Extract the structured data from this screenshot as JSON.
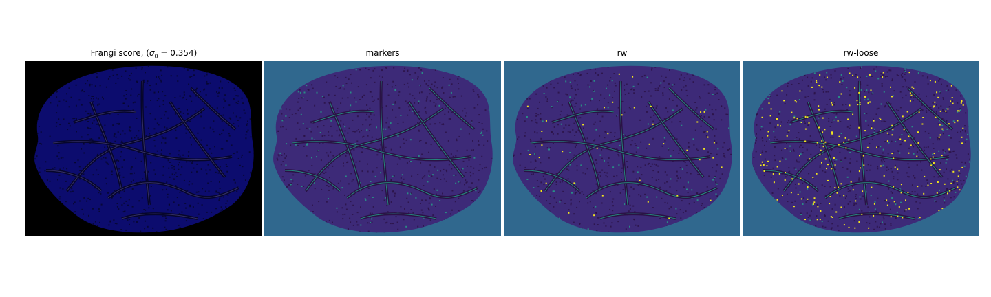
{
  "panels": [
    {
      "id": "p1",
      "title_plain": "Frangi score, (",
      "title_math": "σ",
      "title_sub": "0",
      "title_rest": " = 0.354)",
      "background": "#000000",
      "fill": "#0c0c6e",
      "vessel": "#06062a",
      "accent": "#8a7bd0",
      "speckle_density": 0.0,
      "yellow_density": 0.0
    },
    {
      "id": "p2",
      "title": "markers",
      "background": "#30688e",
      "fill": "#3d2a78",
      "vessel": "#2a1245",
      "accent": "#26a18a",
      "speckle_density": 0.45,
      "yellow_density": 0.0
    },
    {
      "id": "p3",
      "title": "rw",
      "background": "#30688e",
      "fill": "#3d2a78",
      "vessel": "#2a1245",
      "accent": "#26a18a",
      "speckle_density": 0.45,
      "yellow_density": 0.08
    },
    {
      "id": "p4",
      "title": "rw-loose",
      "background": "#30688e",
      "fill": "#3d2a78",
      "vessel": "#2a1245",
      "accent": "#26a18a",
      "speckle_density": 0.55,
      "yellow_density": 0.5
    }
  ]
}
